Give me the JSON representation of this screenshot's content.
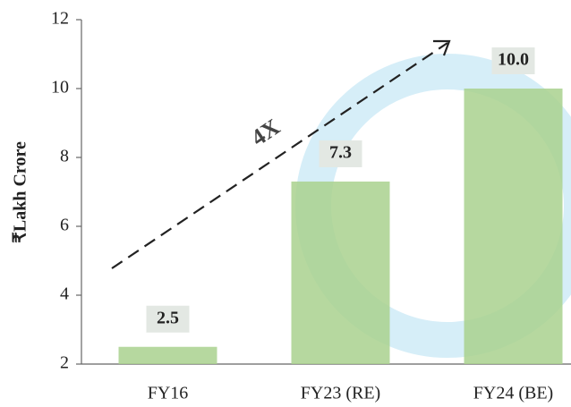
{
  "chart_data": {
    "type": "bar",
    "y_label": "₹Lakh Crore",
    "annotation": "4X",
    "categories": [
      "FY16",
      "FY23 (RE)",
      "FY24 (BE)"
    ],
    "values": [
      2.5,
      7.3,
      10.0
    ],
    "value_labels": [
      "2.5",
      "7.3",
      "10.0"
    ],
    "color": "#a9d18e",
    "ylim": [
      2,
      12
    ],
    "yticks": [
      2,
      4,
      6,
      8,
      10,
      12
    ]
  }
}
